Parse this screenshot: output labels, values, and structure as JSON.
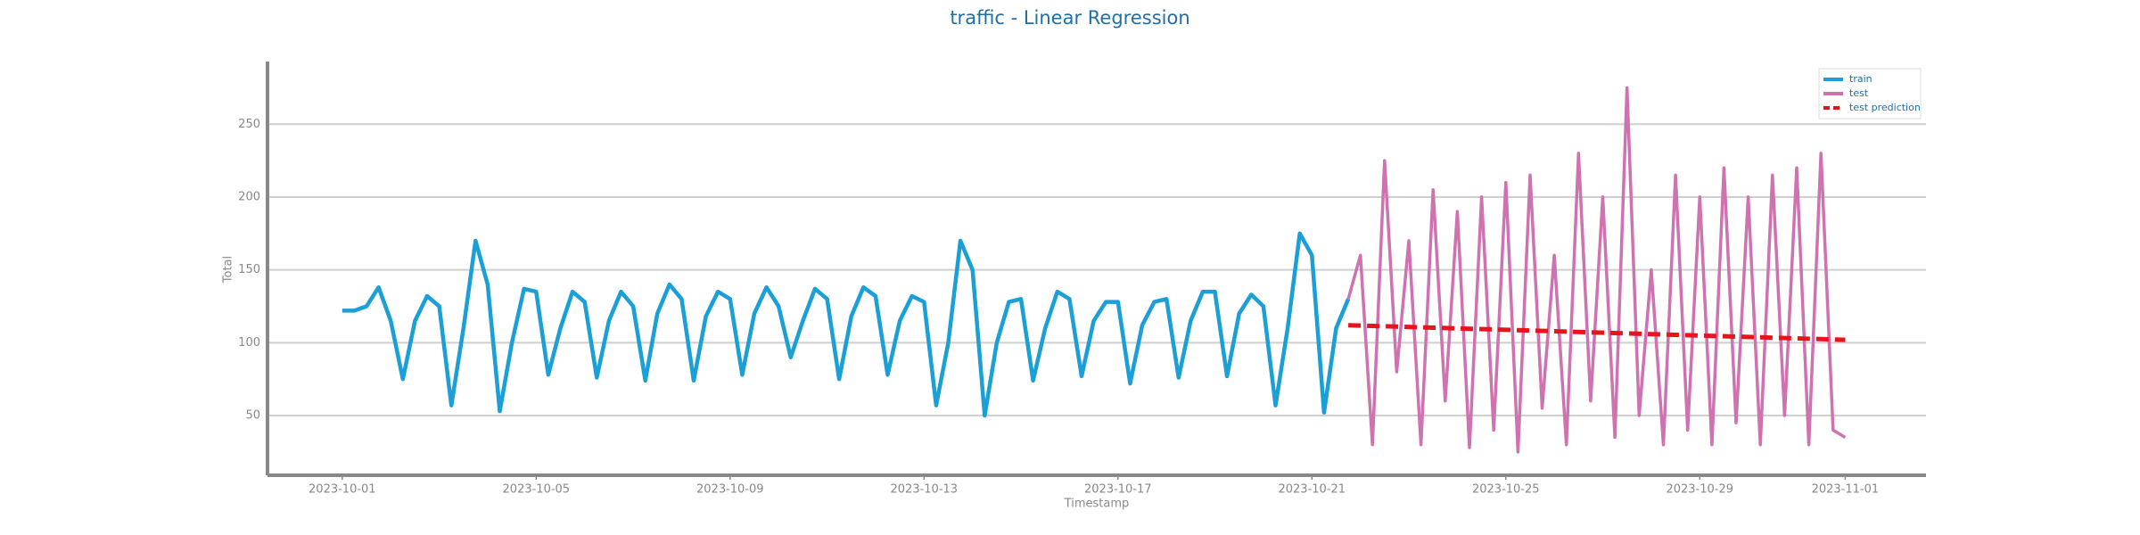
{
  "chart_data": {
    "type": "line",
    "title": "traffic - Linear Regression",
    "xlabel": "Timestamp",
    "ylabel": "Total",
    "xlim": [
      "2023-09-29 11:00",
      "2023-11-02 16:00"
    ],
    "xticks": [
      "2023-10-01",
      "2023-10-05",
      "2023-10-09",
      "2023-10-13",
      "2023-10-17",
      "2023-10-21",
      "2023-10-25",
      "2023-10-29",
      "2023-11-01"
    ],
    "ylim": [
      9,
      293
    ],
    "yticks": [
      50,
      100,
      150,
      200,
      250
    ],
    "grid": true,
    "legend": "upper right",
    "series": [
      {
        "name": "train",
        "color": "#1a9fd6",
        "style": "solid",
        "x": [
          "2023-10-01 00:00",
          "2023-10-01 06:00",
          "2023-10-01 12:00",
          "2023-10-01 18:00",
          "2023-10-02 00:00",
          "2023-10-02 06:00",
          "2023-10-02 12:00",
          "2023-10-02 18:00",
          "2023-10-03 00:00",
          "2023-10-03 06:00",
          "2023-10-03 12:00",
          "2023-10-03 18:00",
          "2023-10-04 00:00",
          "2023-10-04 06:00",
          "2023-10-04 12:00",
          "2023-10-04 18:00",
          "2023-10-05 00:00",
          "2023-10-05 06:00",
          "2023-10-05 12:00",
          "2023-10-05 18:00",
          "2023-10-06 00:00",
          "2023-10-06 06:00",
          "2023-10-06 12:00",
          "2023-10-06 18:00",
          "2023-10-07 00:00",
          "2023-10-07 06:00",
          "2023-10-07 12:00",
          "2023-10-07 18:00",
          "2023-10-08 00:00",
          "2023-10-08 06:00",
          "2023-10-08 12:00",
          "2023-10-08 18:00",
          "2023-10-09 00:00",
          "2023-10-09 06:00",
          "2023-10-09 12:00",
          "2023-10-09 18:00",
          "2023-10-10 00:00",
          "2023-10-10 06:00",
          "2023-10-10 12:00",
          "2023-10-10 18:00",
          "2023-10-11 00:00",
          "2023-10-11 06:00",
          "2023-10-11 12:00",
          "2023-10-11 18:00",
          "2023-10-12 00:00",
          "2023-10-12 06:00",
          "2023-10-12 12:00",
          "2023-10-12 18:00",
          "2023-10-13 00:00",
          "2023-10-13 06:00",
          "2023-10-13 12:00",
          "2023-10-13 18:00",
          "2023-10-14 00:00",
          "2023-10-14 06:00",
          "2023-10-14 12:00",
          "2023-10-14 18:00",
          "2023-10-15 00:00",
          "2023-10-15 06:00",
          "2023-10-15 12:00",
          "2023-10-15 18:00",
          "2023-10-16 00:00",
          "2023-10-16 06:00",
          "2023-10-16 12:00",
          "2023-10-16 18:00",
          "2023-10-17 00:00",
          "2023-10-17 06:00",
          "2023-10-17 12:00",
          "2023-10-17 18:00",
          "2023-10-18 00:00",
          "2023-10-18 06:00",
          "2023-10-18 12:00",
          "2023-10-18 18:00",
          "2023-10-19 00:00",
          "2023-10-19 06:00",
          "2023-10-19 12:00",
          "2023-10-19 18:00",
          "2023-10-20 00:00",
          "2023-10-20 06:00",
          "2023-10-20 12:00",
          "2023-10-20 18:00",
          "2023-10-21 00:00",
          "2023-10-21 06:00",
          "2023-10-21 12:00",
          "2023-10-21 18:00"
        ],
        "values": [
          122,
          122,
          125,
          138,
          115,
          75,
          115,
          132,
          125,
          57,
          110,
          170,
          140,
          53,
          100,
          137,
          135,
          78,
          110,
          135,
          128,
          76,
          115,
          135,
          125,
          74,
          120,
          140,
          130,
          74,
          118,
          135,
          130,
          78,
          120,
          138,
          125,
          90,
          115,
          137,
          130,
          75,
          118,
          138,
          132,
          78,
          115,
          132,
          128,
          57,
          100,
          170,
          150,
          50,
          100,
          128,
          130,
          74,
          110,
          135,
          130,
          77,
          115,
          128,
          128,
          72,
          112,
          128,
          130,
          76,
          115,
          135,
          135,
          77,
          120,
          133,
          125,
          57,
          110,
          175,
          160,
          52,
          110,
          130
        ]
      },
      {
        "name": "test",
        "color": "#cf72b0",
        "style": "solid",
        "x": [
          "2023-10-21 18:00",
          "2023-10-22 00:00",
          "2023-10-22 06:00",
          "2023-10-22 12:00",
          "2023-10-22 18:00",
          "2023-10-23 00:00",
          "2023-10-23 06:00",
          "2023-10-23 12:00",
          "2023-10-23 18:00",
          "2023-10-24 00:00",
          "2023-10-24 06:00",
          "2023-10-24 12:00",
          "2023-10-24 18:00",
          "2023-10-25 00:00",
          "2023-10-25 06:00",
          "2023-10-25 12:00",
          "2023-10-25 18:00",
          "2023-10-26 00:00",
          "2023-10-26 06:00",
          "2023-10-26 12:00",
          "2023-10-26 18:00",
          "2023-10-27 00:00",
          "2023-10-27 06:00",
          "2023-10-27 12:00",
          "2023-10-27 18:00",
          "2023-10-28 00:00",
          "2023-10-28 06:00",
          "2023-10-28 12:00",
          "2023-10-28 18:00",
          "2023-10-29 00:00",
          "2023-10-29 06:00",
          "2023-10-29 12:00",
          "2023-10-29 18:00",
          "2023-10-30 00:00",
          "2023-10-30 06:00",
          "2023-10-30 12:00",
          "2023-10-30 18:00",
          "2023-10-31 00:00",
          "2023-10-31 06:00",
          "2023-10-31 12:00",
          "2023-10-31 18:00",
          "2023-11-01 00:00"
        ],
        "values": [
          130,
          160,
          30,
          225,
          80,
          170,
          30,
          205,
          60,
          190,
          28,
          200,
          40,
          210,
          25,
          215,
          55,
          160,
          30,
          230,
          60,
          200,
          35,
          275,
          50,
          150,
          30,
          215,
          40,
          200,
          30,
          220,
          45,
          200,
          30,
          215,
          50,
          220,
          30,
          230,
          40,
          35
        ]
      },
      {
        "name": "test prediction",
        "color": "#e8141c",
        "style": "dashed",
        "x": [
          "2023-10-21 18:00",
          "2023-11-01 00:00"
        ],
        "values": [
          112,
          102
        ]
      }
    ]
  }
}
